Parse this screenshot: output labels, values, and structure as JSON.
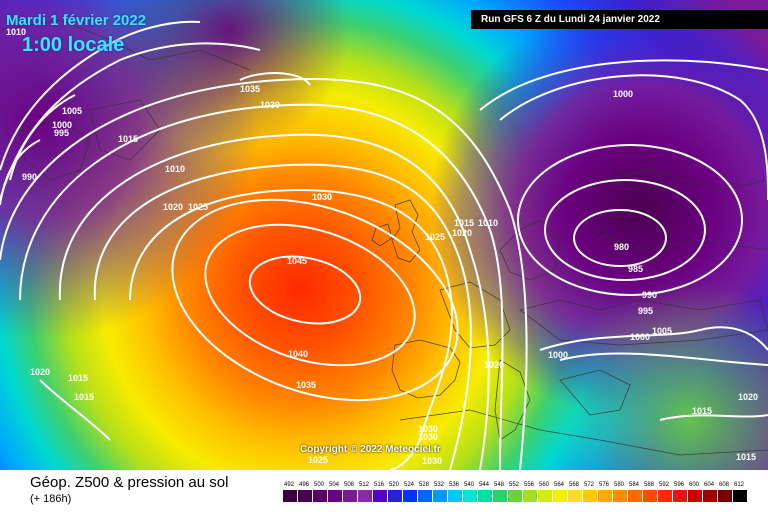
{
  "header": {
    "date": "Mardi 1 février 2022",
    "hour": "1:00 locale",
    "run": "Run GFS 6 Z du Lundi 24 janvier 2022"
  },
  "footer": {
    "title": "Géop. Z500 & pression au sol",
    "subtitle": "(+ 186h)",
    "copyright": "Copyright © 2022 Meteociel.fr"
  },
  "map": {
    "high_center_label": "1045",
    "low_center_label": "980",
    "isobar_labels": [
      "1010",
      "1005",
      "1000",
      "995",
      "990",
      "1035",
      "1030",
      "1015",
      "1010",
      "1020",
      "1025",
      "1030",
      "1030",
      "1025",
      "1020",
      "1015",
      "1010",
      "1000",
      "985",
      "990",
      "995",
      "1000",
      "1005",
      "1000",
      "1020",
      "1015",
      "1015",
      "1020",
      "1040",
      "1035",
      "1030",
      "1030",
      "1025",
      "1030",
      "1015",
      "1015",
      "1020"
    ]
  },
  "scale": {
    "values": [
      "492",
      "496",
      "500",
      "504",
      "508",
      "512",
      "516",
      "520",
      "524",
      "528",
      "532",
      "536",
      "540",
      "544",
      "548",
      "552",
      "556",
      "560",
      "564",
      "568",
      "572",
      "576",
      "580",
      "584",
      "588",
      "592",
      "596",
      "600",
      "604",
      "608",
      "612"
    ],
    "colors": [
      "#3b003b",
      "#4a0050",
      "#5a0066",
      "#6b0080",
      "#7a1a99",
      "#8a2aa8",
      "#5500cc",
      "#2a1ed8",
      "#0034ff",
      "#0066ff",
      "#0099ff",
      "#00c8ff",
      "#00e6d2",
      "#00e0a0",
      "#2ad26a",
      "#6ad23a",
      "#a0e020",
      "#d0ec10",
      "#f5f000",
      "#ffdc28",
      "#ffc800",
      "#ffaa00",
      "#ff8c00",
      "#ff6a00",
      "#ff4a00",
      "#ff2800",
      "#e61414",
      "#c80000",
      "#a00000",
      "#780000",
      "#000000"
    ]
  }
}
